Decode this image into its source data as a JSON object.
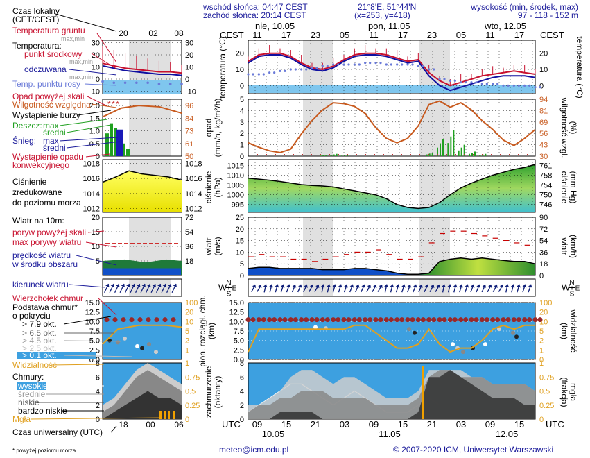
{
  "header": {
    "sunrise": "wschód słońca: 04:47 CEST",
    "sunset": "zachód słońca: 20:14 CEST",
    "coords": "21°8'E, 51°44'N",
    "grid": "(x=253,  y=418)",
    "elev_label": "wysokość (min, środek, max)",
    "elev_values": "97 - 118 - 152 m"
  },
  "top_axis": {
    "tz_left": "CEST",
    "tz_right": "CEST",
    "days": [
      "nie, 10.05",
      "pon, 11.05",
      "wto, 12.05"
    ],
    "hours": [
      "11",
      "17",
      "23",
      "05",
      "11",
      "17",
      "23",
      "05",
      "11",
      "17"
    ],
    "legend_hours": [
      "20",
      "02",
      "08"
    ]
  },
  "bottom_axis": {
    "utc": "UTC",
    "hours": [
      "09",
      "15",
      "21",
      "03",
      "09",
      "15",
      "21",
      "03",
      "09",
      "15"
    ],
    "dates": [
      "10.05",
      "11.05",
      "12.05"
    ],
    "legend_hours": [
      "18",
      "00",
      "06"
    ]
  },
  "legend": {
    "czas_lokalny": "Czas lokalny",
    "cet_cest": "(CET/CEST)",
    "temp_gruntu": "Temperatura gruntu",
    "maxmin1": "max,min",
    "temperatura": "Temperatura:",
    "punkt_srodkowy": "punkt środkowy",
    "maxmin2": "max,min",
    "odczuwana": "odczuwana",
    "maxmin3": "max,min",
    "punkt_rosy": "Temp. punktu rosy",
    "opad_skali": "Opad powyżej skali",
    "wilgotnosc": "Wilgotność względna",
    "burza": "Wystąpienie burzy",
    "deszcz": "Deszcz:",
    "max": "max",
    "sredni": "średni",
    "snieg": "Śnieg:",
    "max2": "max",
    "sredni2": "średni",
    "opad_konw1": "Wystąpienie opadu",
    "opad_konw2": "konwekcyjnego",
    "cisnienie1": "Ciśnienie",
    "cisnienie2": "zredukowane",
    "cisnienie3": "do poziomu morza",
    "wiatr10": "Wiatr na 10m:",
    "poryw_skali": "poryw powyżej skali",
    "max_porywy": "max porywy wiatru",
    "predkosc1": "prędkość wiatru",
    "predkosc2": "w środku obszaru",
    "kierunek": "kierunek wiatru",
    "wierzcholek": "Wierzchołek chmur",
    "podstawa1": "Podstawa chmur*",
    "podstawa2": "o pokryciu",
    "okt79": "> 7.9 okt.",
    "okt65": "> 6.5 okt.",
    "okt45": "> 4.5 okt.",
    "okt25": "> 2.5 okt.",
    "okt01": "> 0.1 okt.",
    "widzialnosc": "Widzialność",
    "chmury": "Chmury:",
    "wysokie": "wysokie",
    "srednie": "średnie",
    "niskie": "niskie",
    "bardzo_niskie": "bardzo niskie",
    "mgla": "Mgła",
    "czas_uniwersalny": "Czas uniwersalny (UTC)",
    "przypis": "* powyżej poziomu morza"
  },
  "panel_labels": {
    "temp_left": "temperatura (°C)",
    "temp_right": "temperatura (°C)",
    "opad_left": "opad (mm/h, kg/m²/h)",
    "opad_right": "wilgotność wzgl. (%)",
    "cisn_left": "ciśnienie (hPa)",
    "cisn_right": "ciśnienie (mm Hg)",
    "wiatr_left": "wiatr (m/s)",
    "wiatr_right": "wiatr (km/h)",
    "chm_left": "pion. rozciągł. chm. (km)",
    "chm_right": "widzialność (km)",
    "zach_left": "zachmurzenie (oktanty)",
    "zach_right": "(frakcja) mgła",
    "compass_n": "N",
    "compass_e": "E",
    "compass_w": "W",
    "compass_s": "S"
  },
  "footer": {
    "email": "meteo@icm.edu.pl",
    "copyright": "© 2007-2020 ICM, Uniwersytet Warszawski"
  },
  "chart_data": [
    {
      "type": "line",
      "name": "temperature",
      "y_ticks": [
        "20",
        "10",
        "0"
      ],
      "y_ticks_legend": [
        "30",
        "20",
        "10",
        "0",
        "-10"
      ],
      "ylim": [
        -5,
        28
      ],
      "series": [
        {
          "name": "punkt środkowy",
          "color": "#c8102e",
          "values": [
            15,
            19,
            20,
            20,
            18,
            14,
            11,
            10,
            12,
            16,
            19,
            20,
            20,
            19,
            17,
            15,
            16,
            8,
            3,
            0,
            2,
            4,
            6,
            7,
            8,
            9,
            8,
            7
          ]
        },
        {
          "name": "odczuwana",
          "color": "#1010a0",
          "values": [
            14,
            18,
            19,
            19,
            17,
            13,
            10,
            9,
            11,
            15,
            18,
            19,
            19,
            18,
            16,
            14,
            15,
            6,
            0,
            -3,
            -1,
            1,
            3,
            5,
            6,
            6,
            6,
            5
          ]
        },
        {
          "name": "Temp. punktu rosy",
          "color": "#6a7ad8",
          "values": [
            7,
            7,
            8,
            9,
            10,
            10,
            11,
            12,
            13,
            13,
            13,
            14,
            14,
            13,
            13,
            13,
            12,
            10,
            4,
            3,
            2,
            2,
            1,
            1,
            0,
            0,
            0,
            -1
          ]
        },
        {
          "name": "Temperatura gruntu",
          "color": "#40a0e0",
          "values": [
            0,
            0,
            0
          ]
        }
      ]
    },
    {
      "type": "bar",
      "name": "precipitation",
      "y_ticks": [
        "5",
        "4",
        "3",
        "2",
        "1",
        "0"
      ],
      "y_ticks_right": [
        "94",
        "81",
        "69",
        "56",
        "43",
        "30"
      ],
      "y_ticks_legend": [
        "2.0",
        "1.5",
        "1.0",
        "0.5",
        "0"
      ],
      "y_ticks_legend_right": [
        "96",
        "84",
        "73",
        "61",
        "50"
      ],
      "ylim": [
        0,
        5
      ],
      "y2lim": [
        30,
        94
      ],
      "series": [
        {
          "name": "Wilgotność względna",
          "color": "#c85a1e",
          "values": [
            45,
            40,
            36,
            34,
            38,
            55,
            70,
            82,
            90,
            89,
            86,
            78,
            62,
            50,
            45,
            50,
            64,
            88,
            92,
            85,
            90,
            82,
            70,
            60,
            48,
            42,
            50,
            60
          ]
        },
        {
          "name": "Deszcz max",
          "color": "#20a020",
          "values": [
            0,
            0,
            0,
            0,
            0,
            0,
            0,
            0.1,
            0.2,
            0.1,
            0,
            0,
            0,
            0,
            0,
            0,
            0,
            0.3,
            1.5,
            2.3,
            1.0,
            0.4,
            0.2,
            0,
            0,
            0,
            0,
            0
          ]
        }
      ]
    },
    {
      "type": "area",
      "name": "pressure",
      "y_ticks": [
        "1015",
        "1010",
        "1005",
        "1000",
        "995"
      ],
      "y_ticks_right": [
        "761",
        "758",
        "754",
        "750",
        "746"
      ],
      "y_ticks_legend": [
        "1018",
        "1016",
        "1014",
        "1012"
      ],
      "ylim": [
        991,
        1018
      ],
      "color": "#ffff00",
      "values": [
        1008.5,
        1008,
        1007.5,
        1006.8,
        1006,
        1005.2,
        1004.8,
        1004.5,
        1004,
        1003,
        1002,
        1001,
        1000,
        998,
        995,
        993.5,
        993,
        993.5,
        996,
        1000,
        1003.5,
        1006,
        1008,
        1010,
        1011.5,
        1013,
        1014,
        1015.5
      ]
    },
    {
      "type": "line",
      "name": "wind",
      "y_ticks": [
        "25",
        "20",
        "15",
        "10",
        "5",
        "0"
      ],
      "y_ticks_right": [
        "90",
        "72",
        "54",
        "36",
        "18",
        "0"
      ],
      "y_ticks_legend": [
        "20",
        "15",
        "10",
        "5"
      ],
      "y_ticks_legend_right": [
        "72",
        "54",
        "36",
        "18"
      ],
      "ylim": [
        0,
        25
      ],
      "series": [
        {
          "name": "prędkość wiatru",
          "color": "#1030b0",
          "values": [
            3,
            3.5,
            3.5,
            3,
            3,
            3,
            3,
            2.5,
            2.5,
            2.5,
            3,
            3,
            2.5,
            2,
            1,
            0.5,
            0.5,
            1,
            6,
            7,
            7.5,
            7,
            7.5,
            7,
            6.5,
            6,
            6,
            5
          ]
        },
        {
          "name": "max porywy wiatru",
          "color": "#c80000",
          "values": [
            8,
            9,
            8,
            8,
            7,
            7,
            6,
            7,
            8,
            9,
            10,
            10,
            11,
            9,
            7,
            7,
            8,
            14,
            18,
            19,
            19,
            18,
            17,
            16,
            15,
            14,
            13,
            12
          ]
        }
      ]
    },
    {
      "type": "line",
      "name": "clouds",
      "y_ticks": [
        "15.0",
        "12.5",
        "10.0",
        "7.5",
        "5.0",
        "2.5",
        "0.0"
      ],
      "y_ticks_right": [
        "100",
        "20",
        "10",
        "5",
        "2",
        "1",
        "0"
      ],
      "y_ticks_legend": [
        "15.0",
        "12.5",
        "10.0",
        "7.5",
        "5.0",
        "2.5",
        "0.0"
      ],
      "y_ticks_legend_right": [
        "100",
        "20",
        "10",
        "5",
        "2",
        "1"
      ],
      "ylim": [
        0,
        15
      ],
      "series": [
        {
          "name": "Wierzchołek chmur",
          "color": "#a02020",
          "values": [
            10.5,
            10.5,
            10.5,
            10.5,
            10.5,
            10.5,
            10.5,
            10.5,
            10.5,
            10.5,
            10.5,
            10.5,
            10.5,
            10.5,
            10.5,
            10.5,
            10.5,
            10.5,
            10.5,
            10.5,
            10.5,
            10.5,
            10.5,
            10.5,
            10.5,
            10.5,
            10.5,
            10.5
          ]
        },
        {
          "name": "Widzialność",
          "color": "#e0a020",
          "values": [
            2,
            8,
            8,
            8,
            8,
            8,
            8,
            8,
            8,
            8,
            9,
            9,
            7,
            5,
            3,
            3,
            4,
            8,
            4,
            2,
            3,
            3,
            5,
            8,
            9,
            8,
            9,
            9
          ]
        }
      ]
    },
    {
      "type": "area",
      "name": "cloud cover",
      "y_ticks": [
        "8",
        "6",
        "4",
        "2",
        "0"
      ],
      "y_ticks_right": [
        "1",
        "0.75",
        "0.5",
        "0.25",
        "0"
      ],
      "ylim": [
        0,
        8
      ],
      "series": [
        {
          "name": "wysokie",
          "color": "#ffffff",
          "values": [
            1,
            2,
            3,
            4,
            5,
            5,
            4,
            3,
            2,
            3,
            4,
            3,
            2,
            1,
            1,
            1,
            2,
            3,
            2,
            2,
            2,
            2,
            2,
            2,
            2,
            2,
            2,
            2
          ]
        },
        {
          "name": "średnie",
          "color": "#cccccc",
          "values": [
            2,
            2,
            3,
            4,
            6,
            7,
            7,
            6,
            5,
            6,
            6,
            5,
            4,
            3,
            3,
            3,
            4,
            7,
            7,
            7,
            7,
            6,
            6,
            5,
            5,
            5,
            5,
            4
          ]
        },
        {
          "name": "niskie",
          "color": "#888888",
          "values": [
            1,
            2,
            2,
            3,
            3,
            4,
            4,
            4,
            3,
            3,
            3,
            3,
            2,
            2,
            2,
            2,
            3,
            6,
            7,
            7,
            6,
            6,
            6,
            5,
            5,
            5,
            5,
            4
          ]
        },
        {
          "name": "bardzo niskie",
          "color": "#333333",
          "values": [
            0,
            0,
            0,
            1,
            1,
            1,
            1,
            0,
            0,
            0,
            0,
            0,
            0,
            0,
            0,
            0,
            1,
            6,
            6,
            7,
            6,
            5,
            4,
            3,
            3,
            3,
            2,
            2
          ]
        }
      ]
    }
  ]
}
